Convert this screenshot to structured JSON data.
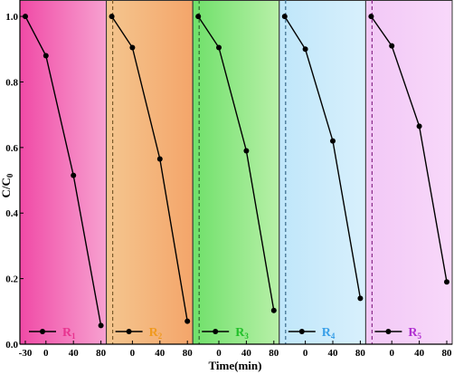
{
  "chart_data": {
    "type": "line",
    "ylabel": "C/C0",
    "ylabel_main": "C/C",
    "ylabel_sub": "0",
    "xlabel": "Time(min)",
    "ylim": [
      0,
      1.05
    ],
    "yticks": [
      "0.0",
      "0.2",
      "0.4",
      "0.6",
      "0.8",
      "1.0"
    ],
    "ytick_values": [
      0,
      0.2,
      0.4,
      0.6,
      0.8,
      1.0
    ],
    "xlim": [
      -30,
      80
    ],
    "legend_position": "bottom-left",
    "panels": [
      {
        "name": "R1",
        "label_main": "R",
        "label_sub": "1",
        "label_color": "#e8338f",
        "bg_colors": [
          "#f04aa6",
          "#f7a1d0"
        ],
        "xticks": [
          "-30",
          "0",
          "40",
          "80"
        ],
        "x": [
          -30,
          0,
          40,
          80
        ],
        "values": [
          1.0,
          0.88,
          0.515,
          0.057
        ],
        "dashed_line": false
      },
      {
        "name": "R2",
        "label_main": "R",
        "label_sub": "2",
        "label_color": "#f09a1e",
        "bg_colors": [
          "#f4c68f",
          "#f4a56a"
        ],
        "xticks": [
          "0",
          "40",
          "80"
        ],
        "x": [
          -30,
          0,
          40,
          80
        ],
        "values": [
          1.0,
          0.905,
          0.565,
          0.07
        ],
        "dashed_line": true,
        "dashed_color": "#7a5a2a"
      },
      {
        "name": "R3",
        "label_main": "R",
        "label_sub": "3",
        "label_color": "#22c02a",
        "bg_colors": [
          "#6fe06a",
          "#b8f0a8"
        ],
        "xticks": [
          "0",
          "40",
          "80"
        ],
        "x": [
          -30,
          0,
          40,
          80
        ],
        "values": [
          1.0,
          0.905,
          0.59,
          0.103
        ],
        "dashed_line": true,
        "dashed_color": "#2f6a2f"
      },
      {
        "name": "R4",
        "label_main": "R",
        "label_sub": "4",
        "label_color": "#3aa0e8",
        "bg_colors": [
          "#bfe6fa",
          "#d8f0fc"
        ],
        "xticks": [
          "0",
          "40",
          "80"
        ],
        "x": [
          -30,
          0,
          40,
          80
        ],
        "values": [
          1.0,
          0.9,
          0.62,
          0.14
        ],
        "dashed_line": true,
        "dashed_color": "#3a6a8a"
      },
      {
        "name": "R5",
        "label_main": "R",
        "label_sub": "5",
        "label_color": "#b02fd0",
        "bg_colors": [
          "#f2c8f6",
          "#f8d8fa"
        ],
        "xticks": [
          "0",
          "40",
          "80"
        ],
        "x": [
          -30,
          0,
          40,
          80
        ],
        "values": [
          1.0,
          0.91,
          0.665,
          0.19
        ],
        "dashed_line": true,
        "dashed_color": "#8a2a8a"
      }
    ]
  }
}
